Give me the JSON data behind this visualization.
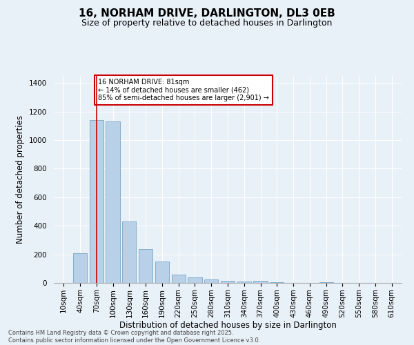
{
  "title": "16, NORHAM DRIVE, DARLINGTON, DL3 0EB",
  "subtitle": "Size of property relative to detached houses in Darlington",
  "xlabel": "Distribution of detached houses by size in Darlington",
  "ylabel": "Number of detached properties",
  "categories": [
    "10sqm",
    "40sqm",
    "70sqm",
    "100sqm",
    "130sqm",
    "160sqm",
    "190sqm",
    "220sqm",
    "250sqm",
    "280sqm",
    "310sqm",
    "340sqm",
    "370sqm",
    "400sqm",
    "430sqm",
    "460sqm",
    "490sqm",
    "520sqm",
    "550sqm",
    "580sqm",
    "610sqm"
  ],
  "values": [
    0,
    210,
    1140,
    1130,
    430,
    235,
    150,
    60,
    38,
    25,
    15,
    12,
    15,
    5,
    0,
    0,
    5,
    0,
    0,
    0,
    0
  ],
  "bar_color": "#b8d0e8",
  "bar_edge_color": "#6699bb",
  "bar_width": 0.85,
  "ylim": [
    0,
    1450
  ],
  "yticks": [
    0,
    200,
    400,
    600,
    800,
    1000,
    1200,
    1400
  ],
  "red_line_index": 2,
  "annotation_line1": "16 NORHAM DRIVE: 81sqm",
  "annotation_line2": "← 14% of detached houses are smaller (462)",
  "annotation_line3": "85% of semi-detached houses are larger (2,901) →",
  "annotation_box_color": "#ffffff",
  "annotation_box_edge": "#cc0000",
  "red_line_color": "#cc0000",
  "background_color": "#e8f0f8",
  "footer_line1": "Contains HM Land Registry data © Crown copyright and database right 2025.",
  "footer_line2": "Contains public sector information licensed under the Open Government Licence v3.0.",
  "title_fontsize": 11,
  "subtitle_fontsize": 9,
  "tick_fontsize": 7.5,
  "ylabel_fontsize": 8.5,
  "xlabel_fontsize": 8.5,
  "annotation_fontsize": 7,
  "footer_fontsize": 6
}
